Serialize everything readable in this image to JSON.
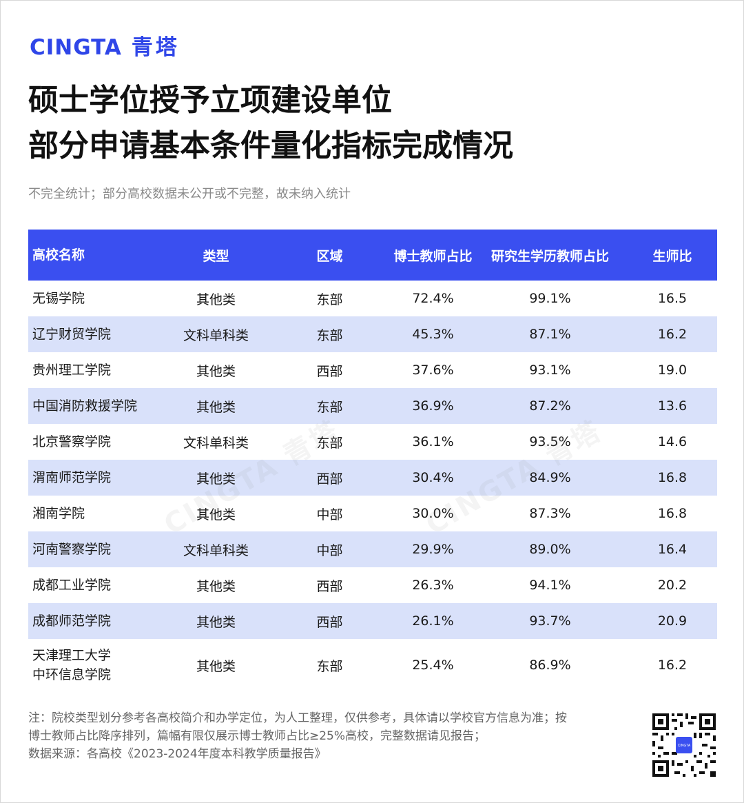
{
  "brand": {
    "en": "CINGTA",
    "cn": "青塔"
  },
  "title": {
    "line1": "硕士学位授予立项建设单位",
    "line2": "部分申请基本条件量化指标完成情况"
  },
  "subtitle": "不完全统计；部分高校数据未公开或不完整，故未纳入统计",
  "table": {
    "headers": [
      "高校名称",
      "类型",
      "区域",
      "博士教师占比",
      "研究生学历教师占比",
      "生师比"
    ],
    "rows": [
      {
        "name": "无锡学院",
        "type": "其他类",
        "region": "东部",
        "phd": "72.4%",
        "grad": "99.1%",
        "ratio": "16.5"
      },
      {
        "name": "辽宁财贸学院",
        "type": "文科单科类",
        "region": "东部",
        "phd": "45.3%",
        "grad": "87.1%",
        "ratio": "16.2"
      },
      {
        "name": "贵州理工学院",
        "type": "其他类",
        "region": "西部",
        "phd": "37.6%",
        "grad": "93.1%",
        "ratio": "19.0"
      },
      {
        "name": "中国消防救援学院",
        "type": "其他类",
        "region": "东部",
        "phd": "36.9%",
        "grad": "87.2%",
        "ratio": "13.6"
      },
      {
        "name": "北京警察学院",
        "type": "文科单科类",
        "region": "东部",
        "phd": "36.1%",
        "grad": "93.5%",
        "ratio": "14.6"
      },
      {
        "name": "渭南师范学院",
        "type": "其他类",
        "region": "西部",
        "phd": "30.4%",
        "grad": "84.9%",
        "ratio": "16.8"
      },
      {
        "name": "湘南学院",
        "type": "其他类",
        "region": "中部",
        "phd": "30.0%",
        "grad": "87.3%",
        "ratio": "16.8"
      },
      {
        "name": "河南警察学院",
        "type": "文科单科类",
        "region": "中部",
        "phd": "29.9%",
        "grad": "89.0%",
        "ratio": "16.4"
      },
      {
        "name": "成都工业学院",
        "type": "其他类",
        "region": "西部",
        "phd": "26.3%",
        "grad": "94.1%",
        "ratio": "20.2"
      },
      {
        "name": "成都师范学院",
        "type": "其他类",
        "region": "西部",
        "phd": "26.1%",
        "grad": "93.7%",
        "ratio": "20.9"
      }
    ],
    "last_row": {
      "name_line1": "天津理工大学",
      "name_line2": "中环信息学院",
      "type": "其他类",
      "region": "东部",
      "phd": "25.4%",
      "grad": "86.9%",
      "ratio": "16.2"
    }
  },
  "watermark": "CINGTA 青塔",
  "notes": {
    "line1": "注：院校类型划分参考各高校简介和办学定位，为人工整理，仅供参考，具体请以学校官方信息为准；按",
    "line2": "博士教师占比降序排列，篇幅有限仅展示博士教师占比≥25%高校，完整数据请见报告；",
    "line3": "数据来源：各高校《2023-2024年度本科教学质量报告》"
  },
  "qr": {
    "center_label": "CINGTA"
  },
  "colors": {
    "accent": "#3a4ff0",
    "brand": "#2f46e8",
    "row_alt": "#d9e1fa"
  }
}
